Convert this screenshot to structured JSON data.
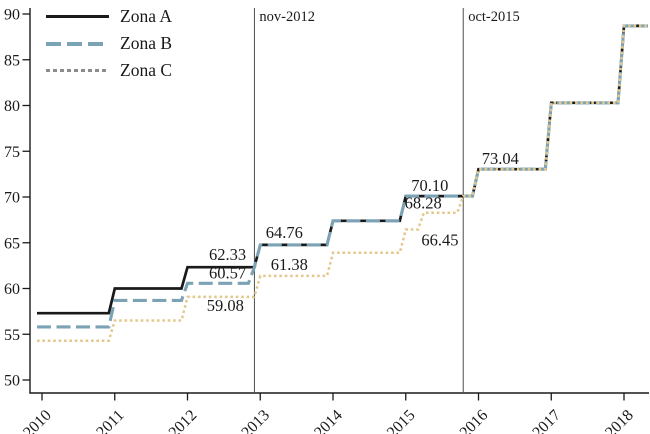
{
  "chart_data": {
    "type": "line",
    "subtype": "step",
    "title": "",
    "xlabel": "",
    "ylabel": "",
    "ylim": [
      50,
      90
    ],
    "xlim": [
      2009.92,
      2018.33
    ],
    "grid": false,
    "legend_position": "top-left",
    "x_ticks": [
      "2010",
      "2011",
      "2012",
      "2013",
      "2014",
      "2015",
      "2016",
      "2017",
      "2018"
    ],
    "y_ticks": [
      50,
      55,
      60,
      65,
      70,
      75,
      80,
      85,
      90
    ],
    "legend": [
      {
        "label": "Zona A",
        "swatch_color": "#1a1a1a",
        "swatch_style": "solid"
      },
      {
        "label": "Zona B",
        "swatch_color": "#7ba3b5",
        "swatch_style": "dashed"
      },
      {
        "label": "Zona C",
        "swatch_color": "#8c8c8c",
        "swatch_style": "dotted"
      }
    ],
    "series": [
      {
        "name": "Zona A",
        "color": "#1a1a1a",
        "dash": "",
        "width": 2.7,
        "steps": [
          [
            2010,
            57.3
          ],
          [
            2011,
            60.0
          ],
          [
            2012,
            62.33
          ],
          [
            2013,
            64.76
          ],
          [
            2014,
            67.4
          ],
          [
            2015,
            70.1
          ],
          [
            2016,
            73.04
          ],
          [
            2017,
            80.3
          ],
          [
            2018,
            88.7
          ]
        ]
      },
      {
        "name": "Zona B",
        "color": "#7ba3b5",
        "dash": "14,5.5",
        "width": 3.1,
        "steps": [
          [
            2010,
            55.8
          ],
          [
            2011,
            58.7
          ],
          [
            2012,
            60.57
          ],
          [
            2012.92,
            62.33
          ],
          [
            2013,
            64.76
          ],
          [
            2014,
            67.4
          ],
          [
            2015,
            70.1
          ],
          [
            2016,
            73.04
          ],
          [
            2017,
            80.3
          ],
          [
            2018,
            88.7
          ]
        ]
      },
      {
        "name": "Zona C",
        "color": "#e2c88d",
        "dash": "2.6,2.8",
        "width": 2.5,
        "steps": [
          [
            2010,
            54.3
          ],
          [
            2011,
            56.5
          ],
          [
            2012,
            59.08
          ],
          [
            2013,
            61.38
          ],
          [
            2014,
            63.9
          ],
          [
            2015,
            66.45
          ],
          [
            2015.25,
            68.28
          ],
          [
            2015.79,
            70.1
          ],
          [
            2016,
            73.04
          ],
          [
            2017,
            80.3
          ],
          [
            2018,
            88.7
          ]
        ]
      }
    ],
    "ref_lines": [
      {
        "x": 2012.92,
        "label": "nov-2012"
      },
      {
        "x": 2015.79,
        "label": "oct-2015"
      }
    ],
    "annotations": [
      {
        "text": "62.33",
        "x": 2012.55,
        "y": 62.33,
        "dy": -7
      },
      {
        "text": "60.57",
        "x": 2012.55,
        "y": 60.57,
        "dy": -5
      },
      {
        "text": "59.08",
        "x": 2012.52,
        "y": 59.08,
        "dy": 14
      },
      {
        "text": "64.76",
        "x": 2013.33,
        "y": 64.76,
        "dy": -7
      },
      {
        "text": "61.38",
        "x": 2013.4,
        "y": 61.38,
        "dy": -6
      },
      {
        "text": "70.10",
        "x": 2015.33,
        "y": 70.1,
        "dy": -5
      },
      {
        "text": "68.28",
        "x": 2015.24,
        "y": 68.28,
        "dy": -4
      },
      {
        "text": "66.45",
        "x": 2015.47,
        "y": 66.45,
        "dy": 16
      },
      {
        "text": "73.04",
        "x": 2016.3,
        "y": 73.04,
        "dy": -5
      }
    ]
  }
}
